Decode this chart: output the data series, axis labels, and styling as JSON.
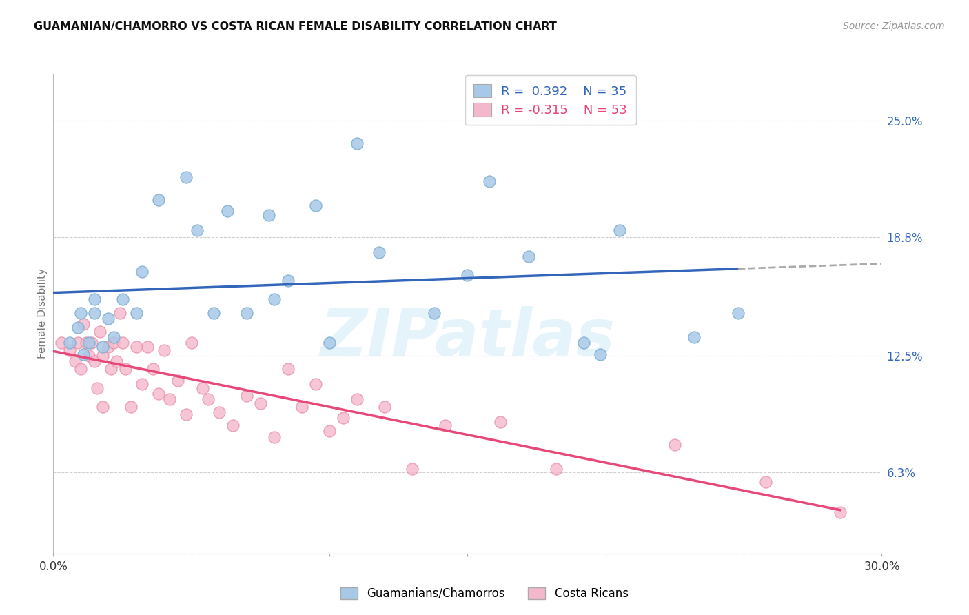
{
  "title": "GUAMANIAN/CHAMORRO VS COSTA RICAN FEMALE DISABILITY CORRELATION CHART",
  "source": "Source: ZipAtlas.com",
  "ylabel": "Female Disability",
  "xmin": 0.0,
  "xmax": 0.3,
  "ymin": 0.02,
  "ymax": 0.275,
  "blue_fill": "#a8c8e8",
  "blue_edge": "#7aaed0",
  "pink_fill": "#f4b8cc",
  "pink_edge": "#e890a8",
  "blue_line_color": "#3366bb",
  "pink_line_color": "#e84878",
  "dash_color": "#aaaaaa",
  "ytick_vals": [
    0.063,
    0.125,
    0.188,
    0.25
  ],
  "ytick_labels": [
    "6.3%",
    "12.5%",
    "18.8%",
    "25.0%"
  ],
  "xtick_vals": [
    0.0,
    0.05,
    0.1,
    0.15,
    0.2,
    0.25,
    0.3
  ],
  "xtick_labels": [
    "0.0%",
    "",
    "",
    "",
    "",
    "",
    "30.0%"
  ],
  "grid_color": "#d0d0d0",
  "legend_label_blue": "Guamanians/Chamorros",
  "legend_label_pink": "Costa Ricans",
  "watermark_text": "ZIPatlas",
  "blue_x": [
    0.006,
    0.009,
    0.01,
    0.011,
    0.013,
    0.015,
    0.015,
    0.018,
    0.02,
    0.022,
    0.025,
    0.03,
    0.032,
    0.038,
    0.048,
    0.052,
    0.058,
    0.063,
    0.07,
    0.078,
    0.08,
    0.085,
    0.095,
    0.1,
    0.11,
    0.118,
    0.138,
    0.15,
    0.158,
    0.172,
    0.192,
    0.198,
    0.205,
    0.232,
    0.248
  ],
  "blue_y": [
    0.132,
    0.14,
    0.148,
    0.126,
    0.132,
    0.148,
    0.155,
    0.13,
    0.145,
    0.135,
    0.155,
    0.148,
    0.17,
    0.208,
    0.22,
    0.192,
    0.148,
    0.202,
    0.148,
    0.2,
    0.155,
    0.165,
    0.205,
    0.132,
    0.238,
    0.18,
    0.148,
    0.168,
    0.218,
    0.178,
    0.132,
    0.126,
    0.192,
    0.135,
    0.148
  ],
  "pink_x": [
    0.003,
    0.006,
    0.008,
    0.009,
    0.01,
    0.011,
    0.012,
    0.013,
    0.014,
    0.015,
    0.016,
    0.017,
    0.018,
    0.018,
    0.02,
    0.021,
    0.022,
    0.023,
    0.024,
    0.025,
    0.026,
    0.028,
    0.03,
    0.032,
    0.034,
    0.036,
    0.038,
    0.04,
    0.042,
    0.045,
    0.048,
    0.05,
    0.054,
    0.056,
    0.06,
    0.065,
    0.07,
    0.075,
    0.08,
    0.085,
    0.09,
    0.095,
    0.1,
    0.105,
    0.11,
    0.12,
    0.13,
    0.142,
    0.162,
    0.182,
    0.225,
    0.258,
    0.285
  ],
  "pink_y": [
    0.132,
    0.128,
    0.122,
    0.132,
    0.118,
    0.142,
    0.132,
    0.125,
    0.132,
    0.122,
    0.108,
    0.138,
    0.125,
    0.098,
    0.13,
    0.118,
    0.132,
    0.122,
    0.148,
    0.132,
    0.118,
    0.098,
    0.13,
    0.11,
    0.13,
    0.118,
    0.105,
    0.128,
    0.102,
    0.112,
    0.094,
    0.132,
    0.108,
    0.102,
    0.095,
    0.088,
    0.104,
    0.1,
    0.082,
    0.118,
    0.098,
    0.11,
    0.085,
    0.092,
    0.102,
    0.098,
    0.065,
    0.088,
    0.09,
    0.065,
    0.078,
    0.058,
    0.042
  ],
  "background_color": "#ffffff"
}
